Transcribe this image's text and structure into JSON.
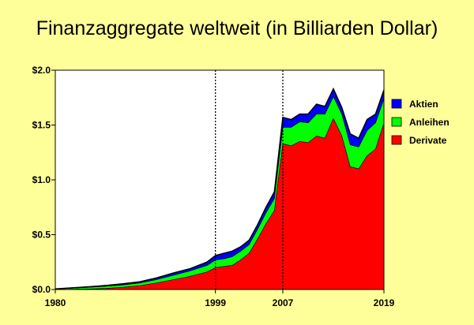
{
  "chart_data": {
    "type": "area",
    "title": "Finanzaggregate weltweit (in Billiarden Dollar)",
    "xlabel": "",
    "ylabel": "",
    "xlim": [
      1980,
      2019
    ],
    "ylim": [
      0,
      2.0
    ],
    "y_ticks": [
      0,
      0.5,
      1.0,
      1.5,
      2.0
    ],
    "y_tick_labels": [
      "$0.0",
      "$0.5",
      "$1.0",
      "$1.5",
      "$2.0"
    ],
    "x_ticks": [
      1980,
      1999,
      2007,
      2019
    ],
    "x_tick_labels": [
      "1980",
      "1999",
      "2007",
      "2019"
    ],
    "reference_lines_x": [
      1999,
      2007
    ],
    "grid": false,
    "stacked": true,
    "legend_position": "right",
    "x": [
      1980,
      1982,
      1984,
      1986,
      1988,
      1990,
      1992,
      1994,
      1996,
      1998,
      1999,
      2000,
      2001,
      2002,
      2003,
      2004,
      2005,
      2006,
      2007,
      2008,
      2009,
      2010,
      2011,
      2012,
      2013,
      2014,
      2015,
      2016,
      2017,
      2018,
      2019
    ],
    "series": [
      {
        "name": "Derivate",
        "color": "#ff0000",
        "values": [
          0,
          0.002,
          0.005,
          0.01,
          0.02,
          0.035,
          0.06,
          0.09,
          0.12,
          0.16,
          0.2,
          0.21,
          0.22,
          0.27,
          0.33,
          0.46,
          0.6,
          0.72,
          1.33,
          1.31,
          1.35,
          1.34,
          1.4,
          1.38,
          1.56,
          1.4,
          1.12,
          1.1,
          1.22,
          1.28,
          1.52
        ]
      },
      {
        "name": "Anleihen",
        "color": "#00ff00",
        "values": [
          0.003,
          0.01,
          0.015,
          0.02,
          0.022,
          0.025,
          0.03,
          0.04,
          0.05,
          0.06,
          0.07,
          0.07,
          0.08,
          0.08,
          0.08,
          0.09,
          0.1,
          0.11,
          0.15,
          0.17,
          0.18,
          0.18,
          0.2,
          0.22,
          0.2,
          0.2,
          0.2,
          0.2,
          0.23,
          0.24,
          0.22
        ]
      },
      {
        "name": "Aktien",
        "color": "#0000ff",
        "values": [
          0.002,
          0.003,
          0.005,
          0.007,
          0.01,
          0.01,
          0.015,
          0.02,
          0.02,
          0.03,
          0.04,
          0.05,
          0.05,
          0.04,
          0.04,
          0.04,
          0.05,
          0.06,
          0.09,
          0.07,
          0.07,
          0.08,
          0.09,
          0.07,
          0.07,
          0.06,
          0.1,
          0.08,
          0.1,
          0.08,
          0.08
        ]
      }
    ]
  }
}
